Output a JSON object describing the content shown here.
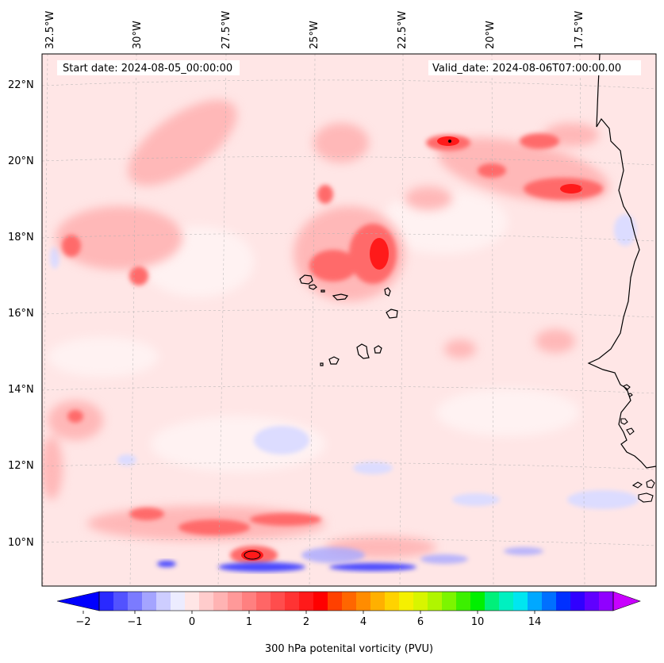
{
  "header": {
    "start_date": "Start date: 2024-08-05_00:00:00",
    "valid_date": "Valid_date: 2024-08-06T07:00:00.00"
  },
  "lon_labels": [
    "32.5°W",
    "30°W",
    "27.5°W",
    "25°W",
    "22.5°W",
    "20°W",
    "17.5°W"
  ],
  "lat_labels": [
    "22°N",
    "20°N",
    "18°N",
    "16°N",
    "14°N",
    "12°N",
    "10°N"
  ],
  "colorbar": {
    "label": "300 hPa potenital vorticity (PVU)",
    "ticks": [
      "−2",
      "−1",
      "0",
      "1",
      "2",
      "4",
      "6",
      "10",
      "14"
    ],
    "colors": [
      "#0000ff",
      "#2929ff",
      "#5252ff",
      "#7b7bff",
      "#a4a4ff",
      "#cdcdff",
      "#ececff",
      "#ffe6e6",
      "#ffcccc",
      "#ffb3b3",
      "#ff9999",
      "#ff8080",
      "#ff6666",
      "#ff4d4d",
      "#ff3333",
      "#ff1a1a",
      "#ff0000",
      "#ff4000",
      "#ff6600",
      "#ff8c00",
      "#ffb000",
      "#ffd200",
      "#f5f000",
      "#d8f500",
      "#b0f500",
      "#7cf500",
      "#3cf000",
      "#00f000",
      "#00f07a",
      "#00f0c0",
      "#00e6f0",
      "#00a8ff",
      "#0070ff",
      "#0030ff",
      "#3000ff",
      "#6000ff",
      "#9000ff",
      "#c000ff"
    ]
  },
  "colors": {
    "background_pv": "#ffe6e6",
    "coast": "#000000",
    "grid": "#b0b0b0"
  }
}
